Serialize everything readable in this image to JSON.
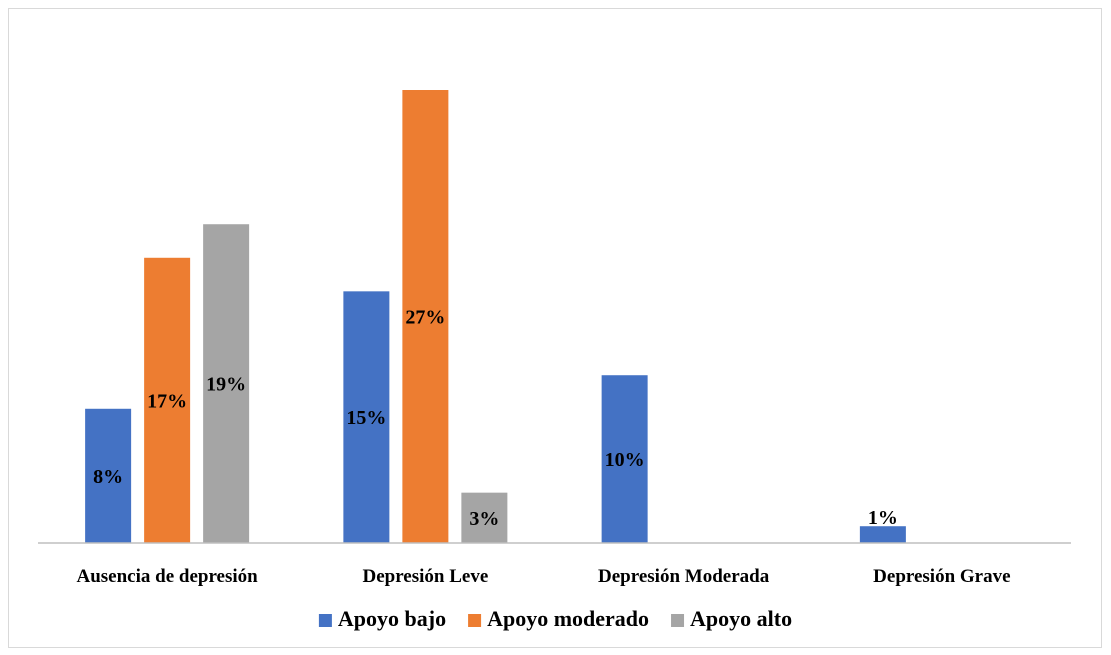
{
  "chart_data": {
    "type": "bar",
    "categories": [
      "Ausencia de depresión",
      "Depresión Leve",
      "Depresión Moderada",
      "Depresión Grave"
    ],
    "series": [
      {
        "name": "Apoyo bajo",
        "color": "#4472C4",
        "values": [
          8,
          15,
          10,
          1
        ],
        "labels": [
          "8%",
          "15%",
          "10%",
          "1%"
        ]
      },
      {
        "name": "Apoyo moderado",
        "color": "#ED7D31",
        "values": [
          17,
          27,
          null,
          null
        ],
        "labels": [
          "17%",
          "27%",
          null,
          null
        ]
      },
      {
        "name": "Apoyo alto",
        "color": "#A5A5A5",
        "values": [
          19,
          3,
          null,
          null
        ],
        "labels": [
          "19%",
          "3%",
          null,
          null
        ]
      }
    ],
    "title": "",
    "xlabel": "",
    "ylabel": "",
    "ylim": [
      0,
      27
    ],
    "grid": false,
    "legend": "bottom"
  }
}
